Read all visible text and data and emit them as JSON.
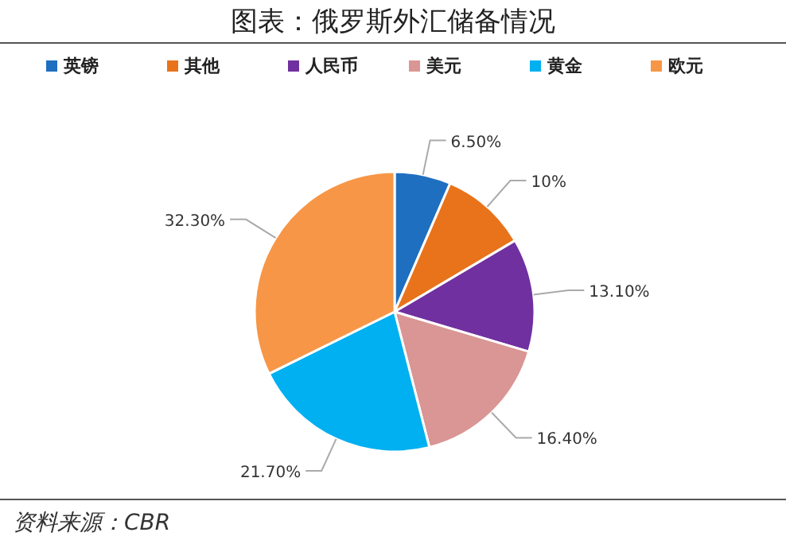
{
  "chart_data": {
    "type": "pie",
    "title": "图表：俄罗斯外汇储备情况",
    "categories": [
      "英镑",
      "其他",
      "人民币",
      "美元",
      "黄金",
      "欧元"
    ],
    "values": [
      6.5,
      10,
      13.1,
      16.4,
      21.7,
      32.3
    ],
    "value_labels": [
      "6.50%",
      "10%",
      "13.10%",
      "16.40%",
      "21.70%",
      "32.30%"
    ],
    "colors": [
      "#1f6fc0",
      "#e8731a",
      "#7030a0",
      "#d99694",
      "#00b0f0",
      "#f79646"
    ],
    "legend": "top",
    "annotations": [
      "资料来源：CBR"
    ]
  }
}
